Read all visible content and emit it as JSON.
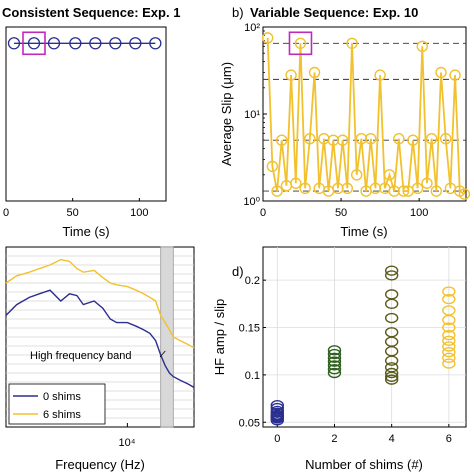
{
  "colors": {
    "navy": "#2b2f8f",
    "gold": "#f2c12e",
    "olive": "#5a5a1a",
    "darkolive": "#3f3a12",
    "green": "#2f5f1f",
    "magenta": "#c02ab8",
    "band": "#d8d8d8"
  },
  "chart_data": [
    {
      "panel": "a",
      "type": "scatter",
      "panel_label": "",
      "title": "Consistent Sequence: Exp. 1",
      "xlabel": "Time (s)",
      "ylabel": "",
      "xlim": [
        0,
        120
      ],
      "ylim": [
        1,
        100
      ],
      "yscale": "log",
      "xticks": [
        0,
        50,
        100
      ],
      "xtick_labels": [
        "0",
        "50",
        "100"
      ],
      "series": [
        {
          "color": "#2b2f8f",
          "x": [
            6,
            21,
            36,
            52,
            67,
            82,
            97,
            112
          ],
          "y": [
            65,
            65,
            65,
            65,
            65,
            65,
            65,
            65
          ]
        }
      ],
      "highlight": {
        "x": 21,
        "y": 65
      }
    },
    {
      "panel": "b",
      "type": "line",
      "panel_label": "b)",
      "title": "Variable Sequence: Exp. 10",
      "xlabel": "Time (s)",
      "ylabel": "Average Slip (μm)",
      "xlim": [
        0,
        130
      ],
      "ylim": [
        1,
        100
      ],
      "yscale": "log",
      "xticks": [
        0,
        50,
        100
      ],
      "xtick_labels": [
        "0",
        "50",
        "100"
      ],
      "yticks": [
        1,
        10,
        100
      ],
      "ytick_labels": [
        "10⁰",
        "10¹",
        "10²"
      ],
      "ref_lines": [
        1.3,
        5,
        25,
        65
      ],
      "series": [
        {
          "color": "#f2c12e",
          "x": [
            3,
            6,
            9,
            12,
            15,
            18,
            21,
            24,
            27,
            30,
            33,
            36,
            39,
            42,
            45,
            48,
            51,
            54,
            57,
            60,
            63,
            66,
            69,
            72,
            75,
            78,
            81,
            84,
            87,
            90,
            93,
            96,
            99,
            102,
            105,
            108,
            111,
            114,
            117,
            120,
            123,
            126,
            129
          ],
          "y": [
            75,
            2.5,
            1.3,
            5,
            1.5,
            28,
            1.6,
            65,
            1.4,
            5.2,
            30,
            1.4,
            5.2,
            1.3,
            5,
            1.4,
            5,
            1.4,
            65,
            2.0,
            5.2,
            1.3,
            5.2,
            1.4,
            28,
            1.4,
            2.0,
            1.3,
            5.2,
            1.3,
            1.3,
            5.0,
            1.4,
            60,
            1.6,
            5.2,
            1.3,
            30,
            5.2,
            1.4,
            28,
            1.3,
            1.2
          ]
        }
      ],
      "highlight": {
        "x": 24,
        "y": 65
      }
    },
    {
      "panel": "c",
      "type": "line",
      "panel_label": "",
      "title": "",
      "xlabel": "Frequency (Hz)",
      "ylabel": "",
      "xscale": "log",
      "xlim": [
        800,
        40000
      ],
      "ylim": [
        0,
        1
      ],
      "xtick_label": "10⁴",
      "band_label": "High frequency band",
      "band": [
        20000,
        26000
      ],
      "series": [
        {
          "name": "0 shims",
          "color": "#2b2f8f",
          "x": [
            800,
            1000,
            1300,
            1600,
            2000,
            2500,
            3000,
            3500,
            4000,
            5000,
            6000,
            7000,
            8000,
            10000,
            12000,
            14000,
            16000,
            18000,
            20000,
            22000,
            24000,
            26000,
            30000,
            35000,
            40000
          ],
          "y": [
            0.62,
            0.68,
            0.72,
            0.74,
            0.76,
            0.7,
            0.74,
            0.73,
            0.68,
            0.7,
            0.66,
            0.6,
            0.58,
            0.58,
            0.56,
            0.54,
            0.52,
            0.48,
            0.4,
            0.34,
            0.3,
            0.28,
            0.26,
            0.24,
            0.22
          ]
        },
        {
          "name": "6 shims",
          "color": "#f2c12e",
          "x": [
            800,
            1000,
            1300,
            1600,
            2000,
            2500,
            3000,
            3500,
            4000,
            5000,
            6000,
            7000,
            8000,
            10000,
            12000,
            14000,
            16000,
            18000,
            20000,
            22000,
            24000,
            26000,
            30000,
            35000,
            40000
          ],
          "y": [
            0.8,
            0.84,
            0.86,
            0.88,
            0.9,
            0.93,
            0.92,
            0.88,
            0.86,
            0.87,
            0.83,
            0.8,
            0.79,
            0.78,
            0.76,
            0.74,
            0.72,
            0.7,
            0.62,
            0.58,
            0.54,
            0.5,
            0.48,
            0.46,
            0.44
          ]
        }
      ]
    },
    {
      "panel": "d",
      "type": "scatter",
      "panel_label": "d)",
      "title": "",
      "xlabel": "Number of shims (#)",
      "ylabel": "HF amp / slip",
      "xlim": [
        -0.5,
        6.6
      ],
      "ylim": [
        0.045,
        0.235
      ],
      "xticks": [
        0,
        2,
        4,
        6
      ],
      "yticks": [
        0.05,
        0.1,
        0.15,
        0.2
      ],
      "ytick_labels": [
        "0.05",
        "0.1",
        "0.15",
        "0.2"
      ],
      "series": [
        {
          "color": "#2b2f8f",
          "x": 0,
          "y": [
            0.052,
            0.054,
            0.055,
            0.056,
            0.057,
            0.058,
            0.06,
            0.062,
            0.065,
            0.068
          ]
        },
        {
          "color": "#2f5f1f",
          "x": 2,
          "y": [
            0.102,
            0.106,
            0.11,
            0.114,
            0.118,
            0.122,
            0.126
          ]
        },
        {
          "color": "#5a5a1a",
          "x": 4,
          "y": [
            0.095,
            0.098,
            0.102,
            0.108,
            0.115,
            0.125,
            0.135,
            0.145,
            0.16,
            0.175,
            0.185,
            0.205,
            0.21
          ]
        },
        {
          "color": "#f2c12e",
          "x": 6,
          "y": [
            0.112,
            0.118,
            0.124,
            0.13,
            0.136,
            0.142,
            0.15,
            0.158,
            0.168,
            0.18,
            0.188
          ]
        }
      ]
    }
  ]
}
